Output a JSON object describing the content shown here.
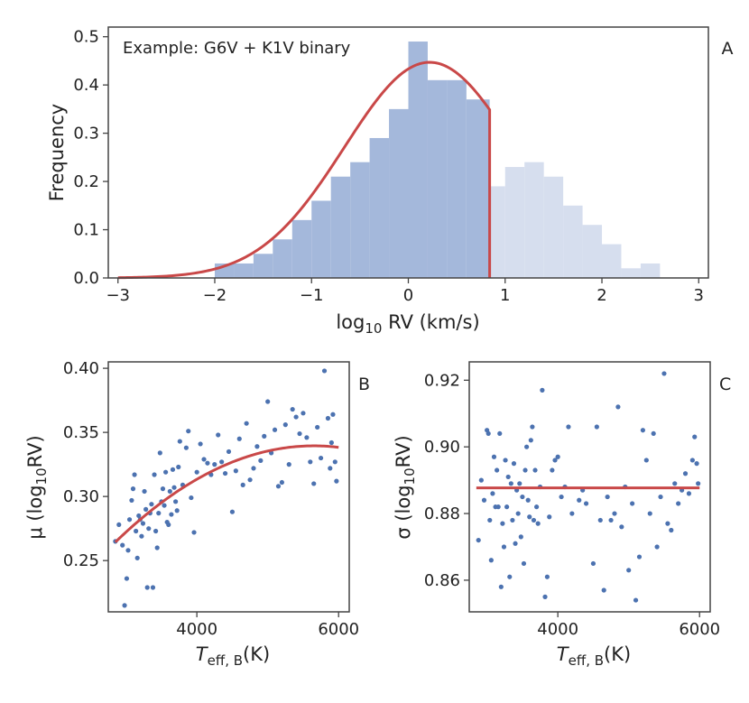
{
  "chart_data": [
    {
      "panel": "A",
      "type": "histogram",
      "annotation": "Example: G6V + K1V binary",
      "xlabel_main": "log",
      "xlabel_sub": "10",
      "xlabel_rest": " RV (km/s)",
      "ylabel": "Frequency",
      "xlim": [
        -3.1,
        3.1
      ],
      "ylim": [
        0,
        0.52
      ],
      "xticks": [
        -3,
        -2,
        -1,
        0,
        1,
        2,
        3
      ],
      "yticks": [
        0.0,
        0.1,
        0.2,
        0.3,
        0.4,
        0.5
      ],
      "ytick_labels": [
        "0.0",
        "0.1",
        "0.2",
        "0.3",
        "0.4",
        "0.5"
      ],
      "cutoff": 0.84,
      "bins": [
        [
          -2.0,
          -1.8,
          0.03
        ],
        [
          -1.8,
          -1.6,
          0.03
        ],
        [
          -1.6,
          -1.4,
          0.05
        ],
        [
          -1.4,
          -1.2,
          0.08
        ],
        [
          -1.2,
          -1.0,
          0.12
        ],
        [
          -1.0,
          -0.8,
          0.16
        ],
        [
          -0.8,
          -0.6,
          0.21
        ],
        [
          -0.6,
          -0.4,
          0.24
        ],
        [
          -0.4,
          -0.2,
          0.29
        ],
        [
          -0.2,
          0.0,
          0.35
        ],
        [
          0.0,
          0.2,
          0.49
        ],
        [
          0.2,
          0.4,
          0.41
        ],
        [
          0.4,
          0.6,
          0.41
        ],
        [
          0.6,
          0.84,
          0.37
        ],
        [
          0.84,
          1.0,
          0.19
        ],
        [
          1.0,
          1.2,
          0.23
        ],
        [
          1.2,
          1.4,
          0.24
        ],
        [
          1.4,
          1.6,
          0.21
        ],
        [
          1.6,
          1.8,
          0.15
        ],
        [
          1.8,
          2.0,
          0.11
        ],
        [
          2.0,
          2.2,
          0.07
        ],
        [
          2.2,
          2.4,
          0.02
        ],
        [
          2.4,
          2.6,
          0.03
        ]
      ],
      "fit_curve": {
        "model": "gaussian_truncated",
        "amplitude": 0.447,
        "mean": 0.22,
        "sigma": 0.88,
        "x_start": -3.0,
        "x_end": 0.84,
        "drop_to": 0.0
      },
      "colors": {
        "in": "#a4b8db",
        "out": "#d6deee",
        "line": "#c94848"
      }
    },
    {
      "panel": "B",
      "type": "scatter",
      "xlabel_main": "T",
      "xlabel_sub": "eff, B",
      "xlabel_rest": "(K)",
      "ylabel_pre": "μ (log",
      "ylabel_sub": "10",
      "ylabel_post": "RV)",
      "xlim": [
        2750,
        6150
      ],
      "ylim": [
        0.21,
        0.405
      ],
      "xticks": [
        4000,
        6000
      ],
      "yticks": [
        0.25,
        0.3,
        0.35,
        0.4
      ],
      "ytick_labels": [
        "0.25",
        "0.30",
        "0.35",
        "0.40"
      ],
      "points": [
        [
          2850,
          0.265
        ],
        [
          2900,
          0.278
        ],
        [
          2950,
          0.262
        ],
        [
          2980,
          0.215
        ],
        [
          3010,
          0.236
        ],
        [
          3030,
          0.258
        ],
        [
          3050,
          0.282
        ],
        [
          3080,
          0.297
        ],
        [
          3100,
          0.306
        ],
        [
          3120,
          0.317
        ],
        [
          3140,
          0.273
        ],
        [
          3160,
          0.252
        ],
        [
          3180,
          0.285
        ],
        [
          3200,
          0.282
        ],
        [
          3220,
          0.269
        ],
        [
          3240,
          0.279
        ],
        [
          3260,
          0.304
        ],
        [
          3280,
          0.29
        ],
        [
          3300,
          0.229
        ],
        [
          3320,
          0.275
        ],
        [
          3340,
          0.287
        ],
        [
          3360,
          0.294
        ],
        [
          3380,
          0.229
        ],
        [
          3400,
          0.317
        ],
        [
          3420,
          0.273
        ],
        [
          3440,
          0.26
        ],
        [
          3460,
          0.287
        ],
        [
          3480,
          0.334
        ],
        [
          3500,
          0.296
        ],
        [
          3520,
          0.306
        ],
        [
          3540,
          0.293
        ],
        [
          3560,
          0.319
        ],
        [
          3580,
          0.28
        ],
        [
          3600,
          0.278
        ],
        [
          3620,
          0.304
        ],
        [
          3640,
          0.286
        ],
        [
          3660,
          0.321
        ],
        [
          3680,
          0.307
        ],
        [
          3700,
          0.296
        ],
        [
          3720,
          0.289
        ],
        [
          3740,
          0.323
        ],
        [
          3760,
          0.343
        ],
        [
          3800,
          0.309
        ],
        [
          3850,
          0.338
        ],
        [
          3880,
          0.351
        ],
        [
          3920,
          0.299
        ],
        [
          3960,
          0.272
        ],
        [
          4000,
          0.319
        ],
        [
          4050,
          0.341
        ],
        [
          4100,
          0.329
        ],
        [
          4150,
          0.326
        ],
        [
          4200,
          0.317
        ],
        [
          4250,
          0.325
        ],
        [
          4300,
          0.348
        ],
        [
          4350,
          0.327
        ],
        [
          4400,
          0.318
        ],
        [
          4450,
          0.335
        ],
        [
          4500,
          0.288
        ],
        [
          4550,
          0.32
        ],
        [
          4600,
          0.345
        ],
        [
          4650,
          0.309
        ],
        [
          4700,
          0.357
        ],
        [
          4750,
          0.313
        ],
        [
          4800,
          0.322
        ],
        [
          4850,
          0.339
        ],
        [
          4900,
          0.328
        ],
        [
          4950,
          0.347
        ],
        [
          5000,
          0.374
        ],
        [
          5050,
          0.334
        ],
        [
          5100,
          0.352
        ],
        [
          5150,
          0.308
        ],
        [
          5200,
          0.311
        ],
        [
          5250,
          0.356
        ],
        [
          5300,
          0.325
        ],
        [
          5350,
          0.368
        ],
        [
          5400,
          0.362
        ],
        [
          5450,
          0.349
        ],
        [
          5500,
          0.365
        ],
        [
          5550,
          0.346
        ],
        [
          5600,
          0.327
        ],
        [
          5650,
          0.31
        ],
        [
          5700,
          0.354
        ],
        [
          5750,
          0.33
        ],
        [
          5800,
          0.398
        ],
        [
          5850,
          0.361
        ],
        [
          5880,
          0.322
        ],
        [
          5900,
          0.342
        ],
        [
          5920,
          0.364
        ],
        [
          5950,
          0.327
        ],
        [
          5970,
          0.312
        ]
      ],
      "fit_curve": {
        "model": "quadratic_vertex",
        "vertex_x": 5650,
        "vertex_y": 0.3395,
        "coeff": -9.58e-09,
        "x_start": 2850,
        "x_end": 6000
      },
      "colors": {
        "point": "#4c72b0",
        "line": "#c94848"
      }
    },
    {
      "panel": "C",
      "type": "scatter",
      "xlabel_main": "T",
      "xlabel_sub": "eff, B",
      "xlabel_rest": "(K)",
      "ylabel_pre": "σ (log",
      "ylabel_sub": "10",
      "ylabel_post": "RV)",
      "xlim": [
        2750,
        6150
      ],
      "ylim": [
        0.8505,
        0.9255
      ],
      "xticks": [
        4000,
        6000
      ],
      "yticks": [
        0.86,
        0.88,
        0.9,
        0.92
      ],
      "ytick_labels": [
        "0.86",
        "0.88",
        "0.90",
        "0.92"
      ],
      "points": [
        [
          2880,
          0.872
        ],
        [
          2920,
          0.89
        ],
        [
          2960,
          0.884
        ],
        [
          3000,
          0.905
        ],
        [
          3020,
          0.904
        ],
        [
          3040,
          0.878
        ],
        [
          3060,
          0.866
        ],
        [
          3080,
          0.886
        ],
        [
          3100,
          0.897
        ],
        [
          3120,
          0.882
        ],
        [
          3140,
          0.893
        ],
        [
          3160,
          0.882
        ],
        [
          3180,
          0.904
        ],
        [
          3200,
          0.858
        ],
        [
          3220,
          0.877
        ],
        [
          3240,
          0.87
        ],
        [
          3260,
          0.896
        ],
        [
          3280,
          0.882
        ],
        [
          3300,
          0.891
        ],
        [
          3320,
          0.861
        ],
        [
          3340,
          0.889
        ],
        [
          3360,
          0.878
        ],
        [
          3380,
          0.895
        ],
        [
          3400,
          0.871
        ],
        [
          3420,
          0.887
        ],
        [
          3440,
          0.88
        ],
        [
          3460,
          0.889
        ],
        [
          3480,
          0.873
        ],
        [
          3500,
          0.885
        ],
        [
          3520,
          0.865
        ],
        [
          3540,
          0.893
        ],
        [
          3560,
          0.9
        ],
        [
          3580,
          0.884
        ],
        [
          3600,
          0.879
        ],
        [
          3620,
          0.902
        ],
        [
          3640,
          0.906
        ],
        [
          3660,
          0.878
        ],
        [
          3680,
          0.893
        ],
        [
          3700,
          0.882
        ],
        [
          3720,
          0.877
        ],
        [
          3750,
          0.888
        ],
        [
          3780,
          0.917
        ],
        [
          3820,
          0.855
        ],
        [
          3850,
          0.861
        ],
        [
          3880,
          0.879
        ],
        [
          3920,
          0.893
        ],
        [
          3960,
          0.896
        ],
        [
          4000,
          0.897
        ],
        [
          4050,
          0.885
        ],
        [
          4100,
          0.888
        ],
        [
          4150,
          0.906
        ],
        [
          4200,
          0.88
        ],
        [
          4300,
          0.884
        ],
        [
          4350,
          0.887
        ],
        [
          4400,
          0.883
        ],
        [
          4500,
          0.865
        ],
        [
          4550,
          0.906
        ],
        [
          4600,
          0.878
        ],
        [
          4650,
          0.857
        ],
        [
          4700,
          0.885
        ],
        [
          4750,
          0.878
        ],
        [
          4800,
          0.88
        ],
        [
          4850,
          0.912
        ],
        [
          4900,
          0.876
        ],
        [
          4950,
          0.888
        ],
        [
          5000,
          0.863
        ],
        [
          5050,
          0.883
        ],
        [
          5100,
          0.854
        ],
        [
          5150,
          0.867
        ],
        [
          5200,
          0.905
        ],
        [
          5250,
          0.896
        ],
        [
          5300,
          0.88
        ],
        [
          5350,
          0.904
        ],
        [
          5400,
          0.87
        ],
        [
          5450,
          0.885
        ],
        [
          5500,
          0.922
        ],
        [
          5550,
          0.877
        ],
        [
          5600,
          0.875
        ],
        [
          5650,
          0.889
        ],
        [
          5700,
          0.883
        ],
        [
          5750,
          0.887
        ],
        [
          5800,
          0.892
        ],
        [
          5850,
          0.886
        ],
        [
          5900,
          0.896
        ],
        [
          5930,
          0.903
        ],
        [
          5960,
          0.895
        ],
        [
          5980,
          0.889
        ]
      ],
      "fit_line": {
        "model": "constant",
        "y": 0.8877,
        "x_start": 2850,
        "x_end": 6000
      },
      "colors": {
        "point": "#4c72b0",
        "line": "#c94848"
      }
    }
  ]
}
